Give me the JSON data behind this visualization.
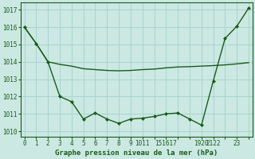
{
  "background_color": "#cbe8e3",
  "grid_color": "#a8d5cc",
  "line_color": "#1a5c1a",
  "title": "Graphe pression niveau de la mer (hPa)",
  "ylim": [
    1009.7,
    1017.4
  ],
  "yticks": [
    1010,
    1011,
    1012,
    1013,
    1014,
    1015,
    1016,
    1017
  ],
  "hours": [
    0,
    1,
    2,
    3,
    4,
    5,
    6,
    7,
    8,
    9,
    10,
    11,
    15,
    16,
    17,
    19,
    20,
    21,
    22,
    23
  ],
  "line1_y": [
    1016.0,
    1015.05,
    1014.0,
    1013.85,
    1013.75,
    1013.6,
    1013.55,
    1013.5,
    1013.48,
    1013.5,
    1013.55,
    1013.58,
    1013.65,
    1013.7,
    1013.72,
    1013.75,
    1013.78,
    1013.82,
    1013.88,
    1013.95
  ],
  "line2_y": [
    1016.0,
    1015.05,
    1014.0,
    1012.0,
    1011.7,
    1010.7,
    1011.05,
    1010.7,
    1010.45,
    1010.7,
    1010.75,
    1010.85,
    1011.0,
    1011.05,
    1010.7,
    1010.35,
    1012.9,
    1015.35,
    1016.05,
    1017.1
  ],
  "xtick_labels": [
    "0",
    "1",
    "2",
    "3",
    "4",
    "5",
    "6",
    "7",
    "8",
    "9",
    "1011",
    "",
    "151617",
    "",
    "",
    "1920",
    "2122",
    "",
    "23",
    ""
  ]
}
